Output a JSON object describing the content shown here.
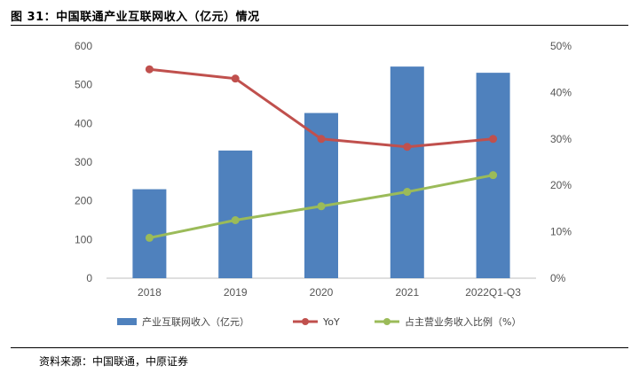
{
  "figure": {
    "title": "图 31：中国联通产业互联网收入（亿元）情况",
    "source": "资料来源：中国联通，中原证券"
  },
  "chart_data": {
    "type": "bar",
    "categories": [
      "2018",
      "2019",
      "2020",
      "2021",
      "2022Q1-Q3"
    ],
    "series": [
      {
        "name": "产业互联网收入（亿元）",
        "type": "bar",
        "axis": "left",
        "color": "#4f81bd",
        "values": [
          230,
          330,
          427,
          547,
          531
        ]
      },
      {
        "name": "YoY",
        "type": "line",
        "axis": "right",
        "color": "#c0504d",
        "values": [
          45,
          43,
          30,
          28.3,
          30
        ]
      },
      {
        "name": "占主营业务收入比例（%）",
        "type": "line",
        "axis": "right",
        "color": "#9bbb59",
        "values": [
          8.7,
          12.5,
          15.5,
          18.6,
          22.2
        ]
      }
    ],
    "yleft": {
      "min": 0,
      "max": 600,
      "ticks": [
        "0",
        "100",
        "200",
        "300",
        "400",
        "500",
        "600"
      ]
    },
    "yright": {
      "min": 0,
      "max": 50,
      "ticks": [
        "0%",
        "10%",
        "20%",
        "30%",
        "40%",
        "50%"
      ]
    },
    "legend_position": "bottom",
    "grid": false
  }
}
